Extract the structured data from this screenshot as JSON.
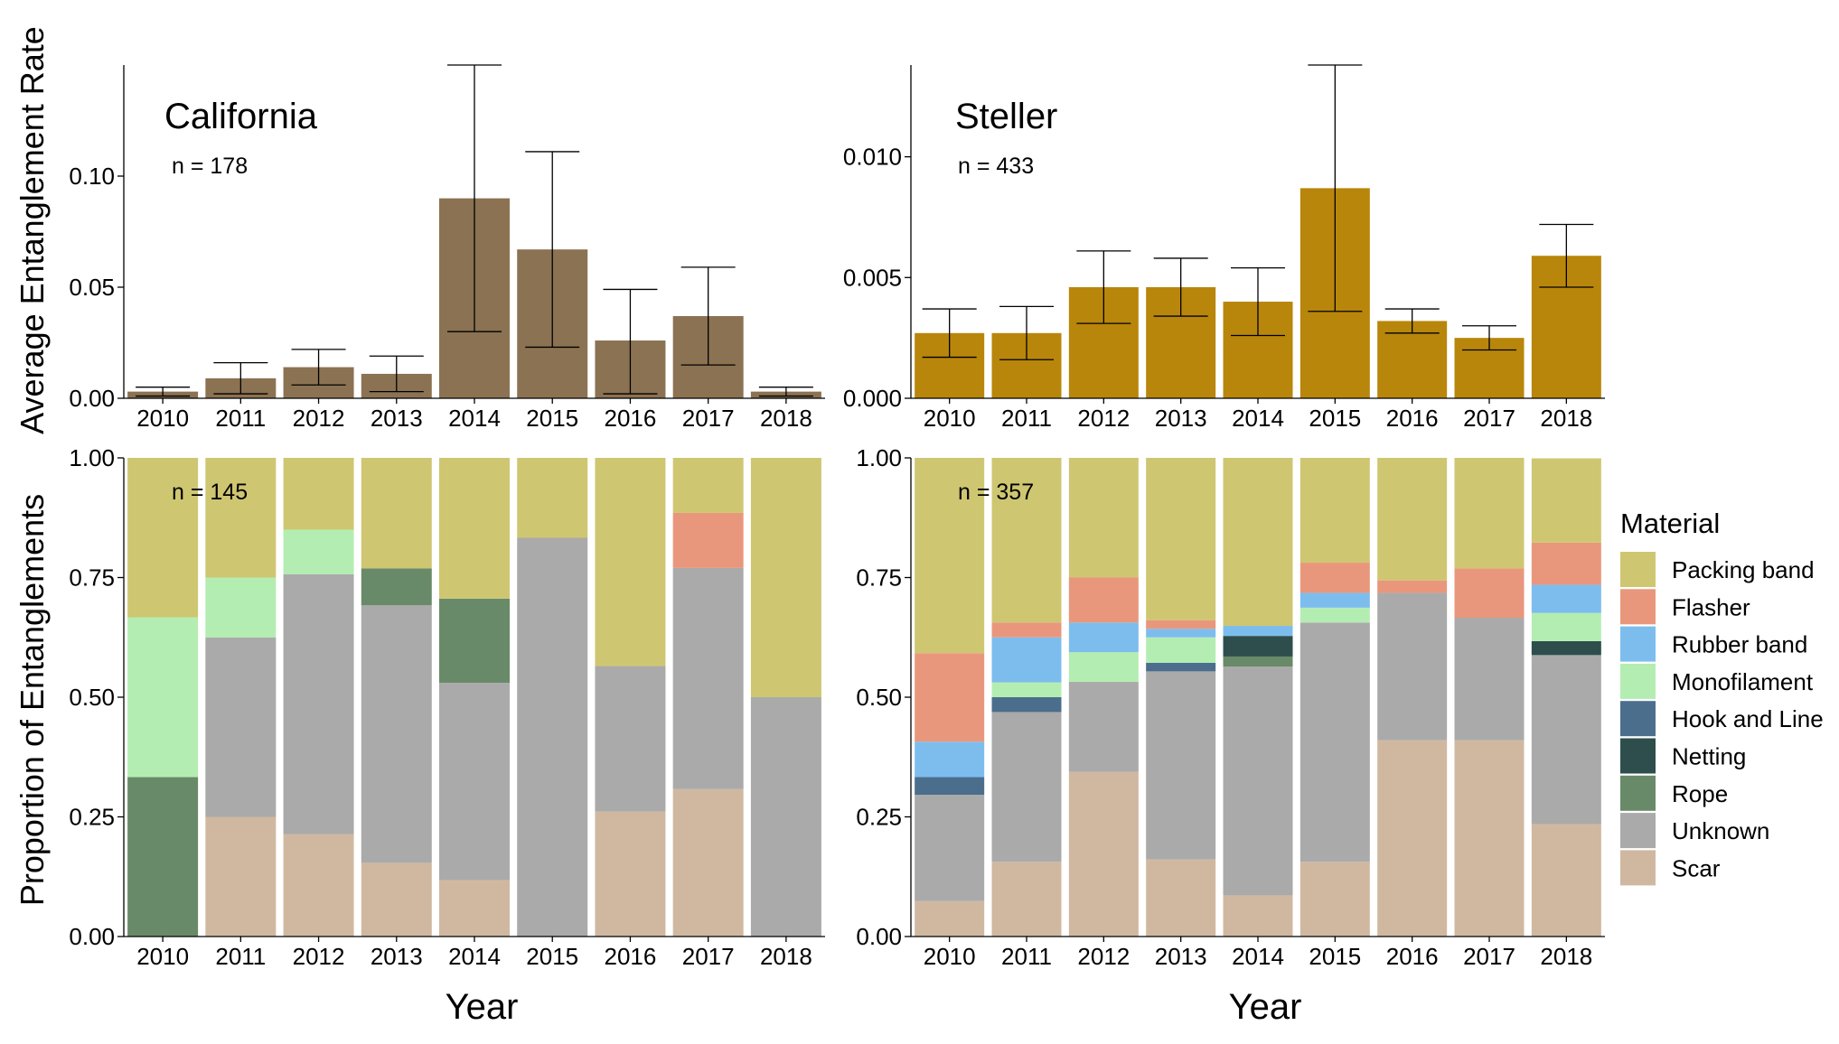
{
  "figure": {
    "y_title_top": "Average Entanglement Rate",
    "y_title_bottom": "Proportion of Entanglements",
    "x_title": "Year",
    "legend_title": "Material"
  },
  "chart_data": [
    {
      "type": "bar",
      "panel": "top-left",
      "title": "California",
      "annotation": "n = 178",
      "categories": [
        "2010",
        "2011",
        "2012",
        "2013",
        "2014",
        "2015",
        "2016",
        "2017",
        "2018"
      ],
      "values": [
        0.003,
        0.009,
        0.014,
        0.011,
        0.09,
        0.067,
        0.026,
        0.037,
        0.003
      ],
      "error_low": [
        0.001,
        0.002,
        0.006,
        0.003,
        0.03,
        0.023,
        0.002,
        0.015,
        0.001
      ],
      "error_high": [
        0.005,
        0.016,
        0.022,
        0.019,
        0.15,
        0.111,
        0.049,
        0.059,
        0.005
      ],
      "color": "#8b7252",
      "ylabel": "Average Entanglement Rate",
      "ylim": [
        0,
        0.15
      ],
      "yticks": [
        "0.00",
        "0.05",
        "0.10"
      ],
      "ytick_values": [
        0,
        0.05,
        0.1
      ]
    },
    {
      "type": "bar",
      "panel": "top-right",
      "title": "Steller",
      "annotation": "n = 433",
      "categories": [
        "2010",
        "2011",
        "2012",
        "2013",
        "2014",
        "2015",
        "2016",
        "2017",
        "2018"
      ],
      "values": [
        0.0027,
        0.0027,
        0.0046,
        0.0046,
        0.004,
        0.0087,
        0.0032,
        0.0025,
        0.0059
      ],
      "error_low": [
        0.0017,
        0.0016,
        0.0031,
        0.0034,
        0.0026,
        0.0036,
        0.0027,
        0.002,
        0.0046
      ],
      "error_high": [
        0.0037,
        0.0038,
        0.0061,
        0.0058,
        0.0054,
        0.0138,
        0.0037,
        0.003,
        0.0072
      ],
      "color": "#b8860b",
      "ylim": [
        0,
        0.0138
      ],
      "yticks": [
        "0.000",
        "0.005",
        "0.010"
      ],
      "ytick_values": [
        0,
        0.005,
        0.01
      ]
    },
    {
      "type": "bar",
      "stacked": true,
      "panel": "bottom-left",
      "annotation": "n = 145",
      "categories": [
        "2010",
        "2011",
        "2012",
        "2013",
        "2014",
        "2015",
        "2016",
        "2017",
        "2018"
      ],
      "xlabel": "Year",
      "ylabel": "Proportion of Entanglements",
      "ylim": [
        0,
        1
      ],
      "yticks": [
        "0.00",
        "0.25",
        "0.50",
        "0.75",
        "1.00"
      ],
      "ytick_values": [
        0,
        0.25,
        0.5,
        0.75,
        1.0
      ],
      "series": [
        {
          "name": "Scar",
          "values": [
            0,
            0.25,
            0.214,
            0.154,
            0.118,
            0,
            0.261,
            0.308,
            0
          ]
        },
        {
          "name": "Unknown",
          "values": [
            0,
            0.375,
            0.543,
            0.538,
            0.412,
            0.833,
            0.304,
            0.462,
            0.5
          ]
        },
        {
          "name": "Rope",
          "values": [
            0.333,
            0,
            0,
            0.077,
            0.176,
            0,
            0,
            0,
            0
          ]
        },
        {
          "name": "Netting",
          "values": [
            0,
            0,
            0,
            0,
            0,
            0,
            0,
            0,
            0
          ]
        },
        {
          "name": "Hook and Line",
          "values": [
            0,
            0,
            0,
            0,
            0,
            0,
            0,
            0,
            0
          ]
        },
        {
          "name": "Monofilament",
          "values": [
            0.334,
            0.125,
            0.093,
            0,
            0,
            0,
            0,
            0,
            0
          ]
        },
        {
          "name": "Rubber band",
          "values": [
            0,
            0,
            0,
            0,
            0,
            0,
            0,
            0,
            0
          ]
        },
        {
          "name": "Flasher",
          "values": [
            0,
            0,
            0,
            0,
            0,
            0,
            0,
            0.115,
            0
          ]
        },
        {
          "name": "Packing band",
          "values": [
            0.333,
            0.25,
            0.15,
            0.231,
            0.294,
            0.167,
            0.435,
            0.115,
            0.5
          ]
        }
      ]
    },
    {
      "type": "bar",
      "stacked": true,
      "panel": "bottom-right",
      "annotation": "n = 357",
      "categories": [
        "2010",
        "2011",
        "2012",
        "2013",
        "2014",
        "2015",
        "2016",
        "2017",
        "2018"
      ],
      "xlabel": "Year",
      "ylim": [
        0,
        1
      ],
      "yticks": [
        "0.00",
        "0.25",
        "0.50",
        "0.75",
        "1.00"
      ],
      "ytick_values": [
        0,
        0.25,
        0.5,
        0.75,
        1.0
      ],
      "series": [
        {
          "name": "Scar",
          "values": [
            0.074,
            0.156,
            0.344,
            0.161,
            0.086,
            0.156,
            0.41,
            0.41,
            0.235
          ]
        },
        {
          "name": "Unknown",
          "values": [
            0.222,
            0.313,
            0.188,
            0.393,
            0.478,
            0.5,
            0.308,
            0.256,
            0.353
          ]
        },
        {
          "name": "Rope",
          "values": [
            0,
            0,
            0,
            0,
            0.021,
            0,
            0,
            0,
            0
          ]
        },
        {
          "name": "Netting",
          "values": [
            0,
            0,
            0,
            0,
            0.043,
            0,
            0,
            0,
            0.029
          ]
        },
        {
          "name": "Hook and Line",
          "values": [
            0.037,
            0.031,
            0,
            0.018,
            0,
            0,
            0,
            0,
            0
          ]
        },
        {
          "name": "Monofilament",
          "values": [
            0,
            0.031,
            0.062,
            0.053,
            0,
            0.031,
            0,
            0,
            0.059
          ]
        },
        {
          "name": "Rubber band",
          "values": [
            0.074,
            0.094,
            0.062,
            0.018,
            0.021,
            0.031,
            0,
            0,
            0.059
          ]
        },
        {
          "name": "Flasher",
          "values": [
            0.185,
            0.031,
            0.094,
            0.018,
            0,
            0.063,
            0.026,
            0.103,
            0.088
          ]
        },
        {
          "name": "Packing band",
          "values": [
            0.408,
            0.344,
            0.25,
            0.339,
            0.351,
            0.219,
            0.256,
            0.231,
            0.176
          ]
        }
      ]
    }
  ],
  "legend": [
    {
      "name": "Packing band",
      "color": "#cfc672"
    },
    {
      "name": "Flasher",
      "color": "#e9977c"
    },
    {
      "name": "Rubber band",
      "color": "#7dbdee"
    },
    {
      "name": "Monofilament",
      "color": "#b4edb2"
    },
    {
      "name": "Hook and Line",
      "color": "#4b6e8c"
    },
    {
      "name": "Netting",
      "color": "#2d4e4c"
    },
    {
      "name": "Rope",
      "color": "#698a68"
    },
    {
      "name": "Unknown",
      "color": "#aaaaaa"
    },
    {
      "name": "Scar",
      "color": "#d0b8a0"
    }
  ]
}
